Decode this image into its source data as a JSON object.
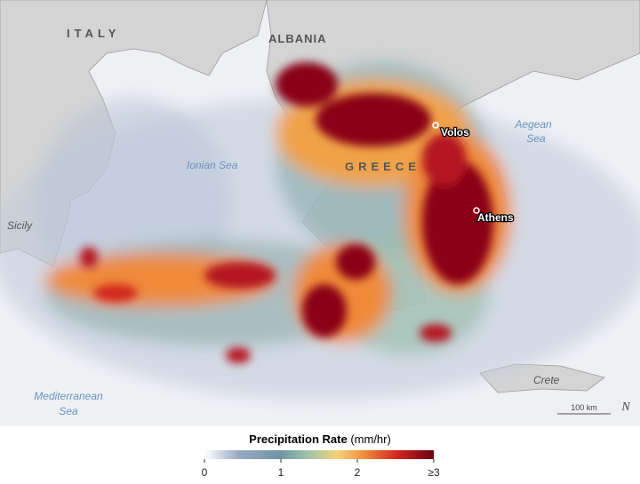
{
  "map": {
    "labels": {
      "italy": "ITALY",
      "albania": "ALBANIA",
      "greece": "GREECE",
      "volos": "Volos",
      "athens": "Athens",
      "aegean": [
        "Aegean",
        "Sea"
      ],
      "ionian": "Ionian Sea",
      "sicily": "Sicily",
      "mediterranean": [
        "Mediterranean",
        "Sea"
      ],
      "crete": "Crete"
    },
    "scale_bar": "100 km",
    "north": "N"
  },
  "legend": {
    "title": "Precipitation Rate",
    "unit": "(mm/hr)",
    "range": [
      0,
      3
    ],
    "ticks": [
      0,
      1,
      2,
      {
        "value": 3,
        "label": "≥3"
      }
    ]
  }
}
